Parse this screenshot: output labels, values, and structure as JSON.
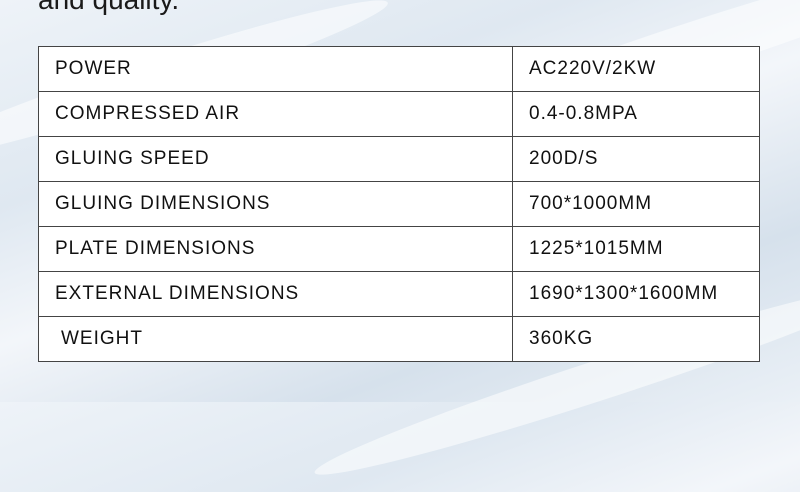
{
  "heading": "and quality.",
  "specs": [
    {
      "label": "POWER",
      "value": "AC220V/2KW"
    },
    {
      "label": "COMPRESSED AIR",
      "value": "0.4-0.8MPA"
    },
    {
      "label": "GLUING SPEED",
      "value": "200D/S"
    },
    {
      "label": "GLUING DIMENSIONS",
      "value": "700*1000MM"
    },
    {
      "label": "PLATE DIMENSIONS",
      "value": "1225*1015MM"
    },
    {
      "label": "EXTERNAL DIMENSIONS",
      "value": "1690*1300*1600MM"
    },
    {
      "label": "WEIGHT",
      "value": "360KG"
    }
  ]
}
